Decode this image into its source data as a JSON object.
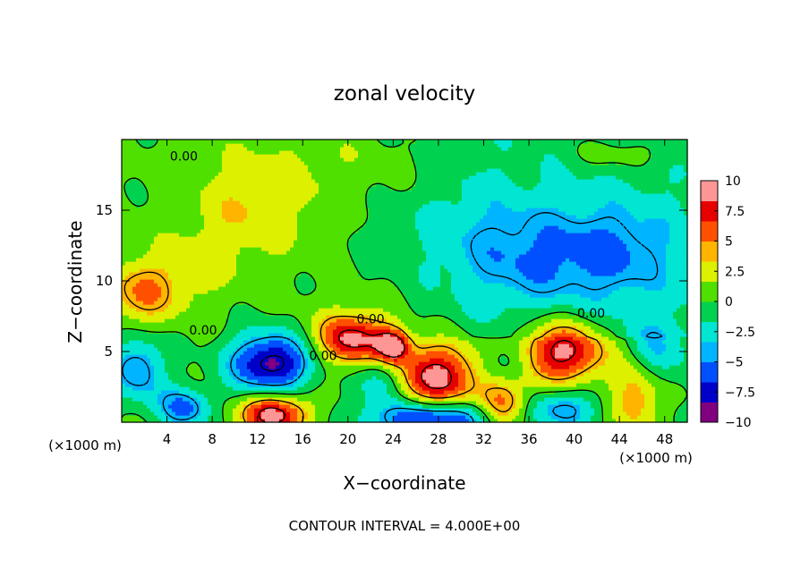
{
  "chart_data": {
    "type": "heatmap",
    "title": "zonal velocity",
    "xlabel": "X−coordinate",
    "ylabel": "Z−coordinate",
    "x_unit_left": "(×1000 m)",
    "x_unit_right": "(×1000 m)",
    "footer": "CONTOUR INTERVAL = 4.000E+00",
    "xlim": [
      0,
      50
    ],
    "ylim": [
      0,
      20
    ],
    "x_ticks": [
      4,
      8,
      12,
      16,
      20,
      24,
      28,
      32,
      36,
      40,
      44,
      48
    ],
    "x_tick_labels": [
      "4",
      "8",
      "12",
      "16",
      "20",
      "24",
      "28",
      "32",
      "36",
      "40",
      "44",
      "48"
    ],
    "y_ticks": [
      5,
      10,
      15
    ],
    "y_tick_labels": [
      "5",
      "10",
      "15"
    ],
    "contour_interval": 4.0,
    "contour_labels": [
      {
        "text": "0.00",
        "x": 5.5,
        "y": 18.5
      },
      {
        "text": "0.00",
        "x": 7.2,
        "y": 6.2
      },
      {
        "text": "0.00",
        "x": 17.8,
        "y": 4.4
      },
      {
        "text": "0.00",
        "x": 22.0,
        "y": 7.0
      },
      {
        "text": "0.00",
        "x": 41.5,
        "y": 7.4
      }
    ],
    "colorbar": {
      "min": -10,
      "max": 10,
      "ticks": [
        10,
        7.5,
        5,
        2.5,
        0,
        -2.5,
        -5,
        -7.5,
        -10
      ],
      "tick_labels": [
        "10",
        "7.5",
        "5",
        "2.5",
        "0",
        "−2.5",
        "−5",
        "−7.5",
        "−10"
      ],
      "colors": [
        "#800080",
        "#0000c8",
        "#0050ff",
        "#00b4ff",
        "#00e6d2",
        "#00d250",
        "#50e000",
        "#dcf000",
        "#ffb400",
        "#ff5000",
        "#e60000",
        "#ff9696"
      ]
    },
    "features": [
      {
        "x": 1.8,
        "z": 9.2,
        "u": 4.8,
        "sx": 2.2,
        "sy": 1.6
      },
      {
        "x": 11.5,
        "z": 15.0,
        "u": 2.8,
        "sx": 3.5,
        "sy": 2.5
      },
      {
        "x": 6.5,
        "z": 11.0,
        "u": 1.8,
        "sx": 2.5,
        "sy": 2.0
      },
      {
        "x": 1.5,
        "z": 3.8,
        "u": -5.5,
        "sx": 1.7,
        "sy": 1.7
      },
      {
        "x": 5.5,
        "z": 1.0,
        "u": -6.0,
        "sx": 1.6,
        "sy": 1.0
      },
      {
        "x": 13.2,
        "z": 4.2,
        "u": -9.5,
        "sx": 2.6,
        "sy": 1.5
      },
      {
        "x": 13.5,
        "z": 0.6,
        "u": 9.5,
        "sx": 2.0,
        "sy": 1.0
      },
      {
        "x": 20.5,
        "z": 5.9,
        "u": 9.0,
        "sx": 2.4,
        "sy": 1.3
      },
      {
        "x": 24.0,
        "z": 5.4,
        "u": 8.0,
        "sx": 1.0,
        "sy": 0.8
      },
      {
        "x": 27.8,
        "z": 3.2,
        "u": 9.0,
        "sx": 2.8,
        "sy": 1.7
      },
      {
        "x": 23.0,
        "z": 3.0,
        "u": -4.5,
        "sx": 1.6,
        "sy": 1.4
      },
      {
        "x": 27.5,
        "z": 0.3,
        "u": -8.5,
        "sx": 3.8,
        "sy": 0.9
      },
      {
        "x": 33.8,
        "z": 1.2,
        "u": 6.0,
        "sx": 1.5,
        "sy": 1.2
      },
      {
        "x": 39.0,
        "z": 5.0,
        "u": 9.2,
        "sx": 2.8,
        "sy": 1.6
      },
      {
        "x": 39.0,
        "z": 1.0,
        "u": -4.5,
        "sx": 2.0,
        "sy": 1.0
      },
      {
        "x": 45.5,
        "z": 1.8,
        "u": 5.0,
        "sx": 1.5,
        "sy": 2.0
      },
      {
        "x": 43.5,
        "z": 12.0,
        "u": -4.0,
        "sx": 4.0,
        "sy": 2.5
      },
      {
        "x": 35.5,
        "z": 11.5,
        "u": -3.0,
        "sx": 4.0,
        "sy": 2.5
      },
      {
        "x": 30.0,
        "z": 14.0,
        "u": -1.5,
        "sx": 5.0,
        "sy": 3.0
      },
      {
        "x": 47.0,
        "z": 5.0,
        "u": -3.5,
        "sx": 2.0,
        "sy": 1.5
      },
      {
        "x": 34.0,
        "z": 4.3,
        "u": -3.0,
        "sx": 1.4,
        "sy": 1.0
      },
      {
        "x": 18.0,
        "z": 18.0,
        "u": 1.2,
        "sx": 6.0,
        "sy": 2.0
      },
      {
        "x": 44.0,
        "z": 19.0,
        "u": 2.0,
        "sx": 3.0,
        "sy": 0.8
      }
    ]
  }
}
